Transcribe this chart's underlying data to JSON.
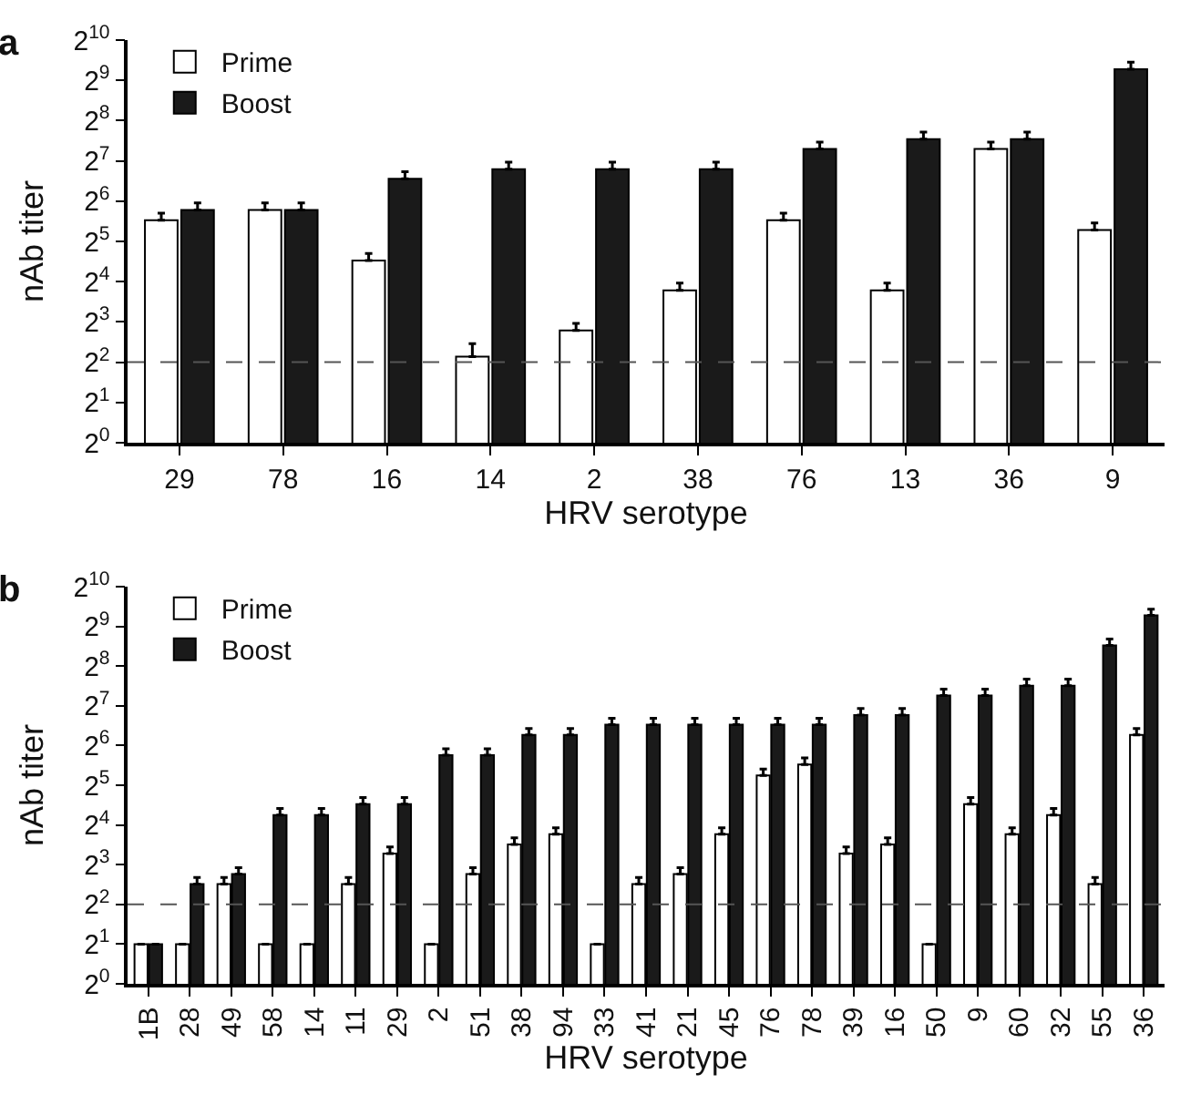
{
  "chart_data": [
    {
      "type": "bar",
      "title": "a",
      "xlabel": "HRV serotype",
      "ylabel": "nAb titer",
      "log": true,
      "legend": "top left",
      "grid": false,
      "categories": [
        "29",
        "78",
        "16",
        "14",
        "2",
        "38",
        "76",
        "13",
        "36",
        "9"
      ],
      "ylim": [
        1,
        1024
      ],
      "yticks": [
        {
          "value": 1,
          "label": "2$^{0}$"
        },
        {
          "value": 2,
          "label": "2$^{1}$"
        },
        {
          "value": 4,
          "label": "2$^{2}$"
        },
        {
          "value": 8,
          "label": "2$^{3}$"
        },
        {
          "value": 16,
          "label": "2$^{4}$"
        },
        {
          "value": 32,
          "label": "2$^{5}$"
        },
        {
          "value": 64,
          "label": "2$^{6}$"
        },
        {
          "value": 128,
          "label": "2$^{7}$"
        },
        {
          "value": 256,
          "label": "2$^{8}$"
        },
        {
          "value": 512,
          "label": "2$^{9}$"
        },
        {
          "value": 1024,
          "label": "2$^{10}$"
        }
      ],
      "ref_lines": [
        {
          "axis": "y",
          "value": 4,
          "line_style": "dashed",
          "color": "#555555"
        }
      ],
      "series": [
        {
          "name": "Prime",
          "color": "#ffffff",
          "values": [
            46,
            55,
            23,
            4.4,
            6.9,
            13.8,
            46,
            13.8,
            157,
            39
          ],
          "errors": [
            [
              46,
              52
            ],
            [
              55,
              62
            ],
            [
              23,
              26
            ],
            [
              4.4,
              5.5
            ],
            [
              6.9,
              7.8
            ],
            [
              13.8,
              15.6
            ],
            [
              46,
              52
            ],
            [
              13.8,
              15.6
            ],
            [
              157,
              177
            ],
            [
              39,
              44
            ]
          ]
        },
        {
          "name": "Boost",
          "color": "#1a1a1a",
          "values": [
            55,
            55,
            94,
            111,
            111,
            111,
            157,
            186,
            186,
            620
          ],
          "errors": [
            [
              55,
              62
            ],
            [
              55,
              62
            ],
            [
              94,
              106
            ],
            [
              111,
              125
            ],
            [
              111,
              125
            ],
            [
              111,
              125
            ],
            [
              157,
              177
            ],
            [
              186,
              210
            ],
            [
              186,
              210
            ],
            [
              620,
              700
            ]
          ]
        }
      ]
    },
    {
      "type": "bar",
      "title": "b",
      "xlabel": "HRV serotype",
      "ylabel": "nAb titer",
      "log": true,
      "legend": "top left",
      "grid": false,
      "categories": [
        "1B",
        "28",
        "49",
        "58",
        "14",
        "11",
        "29",
        "2",
        "51",
        "38",
        "94",
        "33",
        "41",
        "21",
        "45",
        "76",
        "78",
        "39",
        "16",
        "50",
        "9",
        "60",
        "32",
        "55",
        "36"
      ],
      "ylim": [
        1,
        1024
      ],
      "yticks": [
        {
          "value": 1,
          "label": "2$^{0}$"
        },
        {
          "value": 2,
          "label": "2$^{1}$"
        },
        {
          "value": 4,
          "label": "2$^{2}$"
        },
        {
          "value": 8,
          "label": "2$^{3}$"
        },
        {
          "value": 16,
          "label": "2$^{4}$"
        },
        {
          "value": 32,
          "label": "2$^{5}$"
        },
        {
          "value": 64,
          "label": "2$^{6}$"
        },
        {
          "value": 128,
          "label": "2$^{7}$"
        },
        {
          "value": 256,
          "label": "2$^{8}$"
        },
        {
          "value": 512,
          "label": "2$^{9}$"
        },
        {
          "value": 1024,
          "label": "2$^{10}$"
        }
      ],
      "ref_lines": [
        {
          "axis": "y",
          "value": 4,
          "line_style": "dashed",
          "color": "#555555"
        }
      ],
      "series": [
        {
          "name": "Prime",
          "color": "#ffffff",
          "values": [
            2,
            2,
            5.7,
            2,
            2,
            5.7,
            9.7,
            2,
            6.8,
            11.4,
            13.6,
            2,
            5.7,
            6.8,
            13.6,
            38,
            46,
            9.7,
            11.4,
            2,
            23,
            13.6,
            19,
            5.7,
            77
          ],
          "errors": [
            null,
            null,
            [
              5.7,
              6.4
            ],
            null,
            null,
            [
              5.7,
              6.4
            ],
            [
              9.7,
              10.9
            ],
            null,
            [
              6.8,
              7.6
            ],
            [
              11.4,
              12.8
            ],
            [
              13.6,
              15.2
            ],
            null,
            [
              5.7,
              6.4
            ],
            [
              6.8,
              7.6
            ],
            [
              13.6,
              15.2
            ],
            [
              38,
              42.5
            ],
            [
              46,
              51.5
            ],
            [
              9.7,
              10.9
            ],
            [
              11.4,
              12.8
            ],
            null,
            [
              23,
              25.8
            ],
            [
              13.6,
              15.2
            ],
            [
              19,
              21.3
            ],
            [
              5.7,
              6.4
            ],
            [
              77,
              86
            ]
          ]
        },
        {
          "name": "Boost",
          "color": "#1a1a1a",
          "values": [
            2,
            5.7,
            6.8,
            19,
            19,
            23,
            23,
            54,
            54,
            77,
            77,
            92,
            92,
            92,
            92,
            92,
            92,
            109,
            109,
            153,
            153,
            182,
            182,
            367,
            620
          ],
          "errors": [
            null,
            [
              5.7,
              6.4
            ],
            [
              6.8,
              7.6
            ],
            [
              19,
              21.3
            ],
            [
              19,
              21.3
            ],
            [
              23,
              25.8
            ],
            [
              23,
              25.8
            ],
            [
              54,
              60.5
            ],
            [
              54,
              60.5
            ],
            [
              77,
              86
            ],
            [
              77,
              86
            ],
            [
              92,
              103
            ],
            [
              92,
              103
            ],
            [
              92,
              103
            ],
            [
              92,
              103
            ],
            [
              92,
              103
            ],
            [
              92,
              103
            ],
            [
              109,
              122
            ],
            [
              109,
              122
            ],
            [
              153,
              171
            ],
            [
              153,
              171
            ],
            [
              182,
              204
            ],
            [
              182,
              204
            ],
            [
              367,
              411
            ],
            [
              620,
              690
            ]
          ]
        }
      ]
    }
  ]
}
